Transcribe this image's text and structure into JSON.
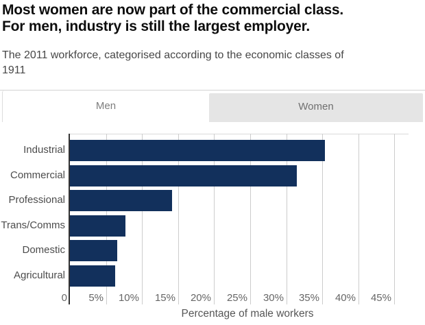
{
  "header": {
    "title_lines": [
      "Most women are now part of the commercial class.",
      "For men, industry is still the largest employer."
    ],
    "subtitle_lines": [
      "The 2011 workforce, categorised according to the economic classes of",
      "1911"
    ]
  },
  "tabs": [
    {
      "label": "Men",
      "active": true
    },
    {
      "label": "Women",
      "active": false
    }
  ],
  "chart_data": {
    "type": "bar",
    "orientation": "horizontal",
    "title": "Most women are now part of the commercial class. For men, industry is still the largest employer.",
    "subtitle": "The 2011 workforce, categorised according to the economic classes of 1911",
    "categories": [
      "Industrial",
      "Commercial",
      "Professional",
      "Trans/Comms",
      "Domestic",
      "Agricultural"
    ],
    "values": [
      35.4,
      31.5,
      14.2,
      7.7,
      6.6,
      6.3
    ],
    "unit": "%",
    "xlabel": "Percentage of male workers",
    "ylabel": "",
    "xlim": [
      0,
      47
    ],
    "xticks": [
      0,
      5,
      10,
      15,
      20,
      25,
      30,
      35,
      40,
      45
    ],
    "xtick_labels": [
      "0",
      "5%",
      "10%",
      "15%",
      "20%",
      "25%",
      "30%",
      "35%",
      "40%",
      "45%"
    ],
    "grid": "vertical-gridlines",
    "legend": "none",
    "bar_color": "#12305c",
    "gridline_color": "#cccccc",
    "axis_color": "#333333"
  }
}
